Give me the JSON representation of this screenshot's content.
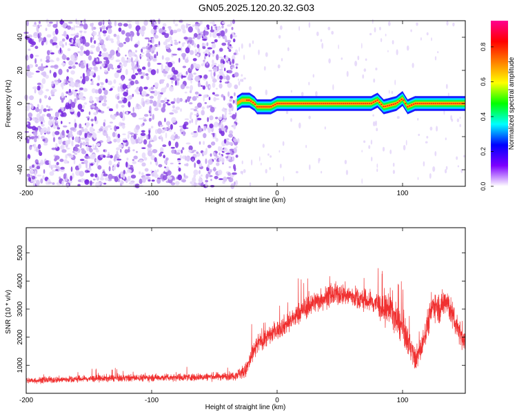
{
  "title": "GN05.2025.120.20.32.G03",
  "chart_data": [
    {
      "type": "heatmap",
      "xlabel": "Height of straight line (km)",
      "ylabel": "Frequency (Hz)",
      "xlim": [
        -200,
        150
      ],
      "ylim": [
        -50,
        50
      ],
      "x_ticks": [
        -200,
        -100,
        0,
        100
      ],
      "y_ticks": [
        -40,
        -20,
        0,
        20,
        40
      ],
      "noise_region_x": [
        -200,
        -32
      ],
      "signal_band": {
        "x_start": -32,
        "x_end": 150,
        "frequency_hz": [
          [
            -32,
            0
          ],
          [
            -28,
            2
          ],
          [
            -22,
            2
          ],
          [
            -18,
            0
          ],
          [
            -16,
            -2
          ],
          [
            -5,
            -2
          ],
          [
            0,
            0
          ],
          [
            20,
            0
          ],
          [
            75,
            0
          ],
          [
            80,
            2
          ],
          [
            85,
            -2
          ],
          [
            95,
            0
          ],
          [
            100,
            3
          ],
          [
            104,
            -2
          ],
          [
            110,
            0
          ],
          [
            150,
            0
          ]
        ]
      },
      "colorbar": {
        "label": "Normalized spectral amplitude",
        "range": [
          0.0,
          0.95
        ],
        "ticks": [
          0.0,
          0.2,
          0.4,
          0.6,
          0.8
        ],
        "colors": [
          "#ffffff",
          "#7d00ff",
          "#0000ff",
          "#00ffff",
          "#00ff00",
          "#ffff00",
          "#ff8000",
          "#ff0000",
          "#ff0090"
        ]
      }
    },
    {
      "type": "line",
      "xlabel": "Height of straight line (km)",
      "ylabel": "SNR (10 * v/v)",
      "xlim": [
        -200,
        150
      ],
      "ylim": [
        0,
        5900
      ],
      "x_ticks": [
        -200,
        -100,
        0,
        100
      ],
      "y_ticks": [
        1000,
        2000,
        3000,
        4000,
        5000
      ],
      "series_color": "#f03030",
      "envelope": {
        "x": [
          -200,
          -150,
          -100,
          -60,
          -35,
          -25,
          -20,
          -15,
          -10,
          0,
          10,
          20,
          30,
          40,
          50,
          60,
          70,
          80,
          85,
          90,
          95,
          100,
          105,
          110,
          115,
          120,
          125,
          130,
          135,
          140,
          145,
          150
        ],
        "mean": [
          450,
          520,
          560,
          580,
          620,
          800,
          1350,
          1800,
          1950,
          2250,
          2550,
          2950,
          3250,
          3450,
          3550,
          3450,
          3300,
          3200,
          2900,
          3100,
          2600,
          2300,
          1800,
          1200,
          1600,
          2500,
          3200,
          3000,
          3400,
          2700,
          2300,
          1700
        ],
        "spread": [
          200,
          220,
          230,
          240,
          260,
          500,
          700,
          600,
          600,
          600,
          650,
          700,
          700,
          700,
          700,
          700,
          700,
          800,
          900,
          1100,
          1000,
          1000,
          900,
          700,
          800,
          900,
          900,
          900,
          1000,
          900,
          800,
          700
        ]
      }
    }
  ]
}
